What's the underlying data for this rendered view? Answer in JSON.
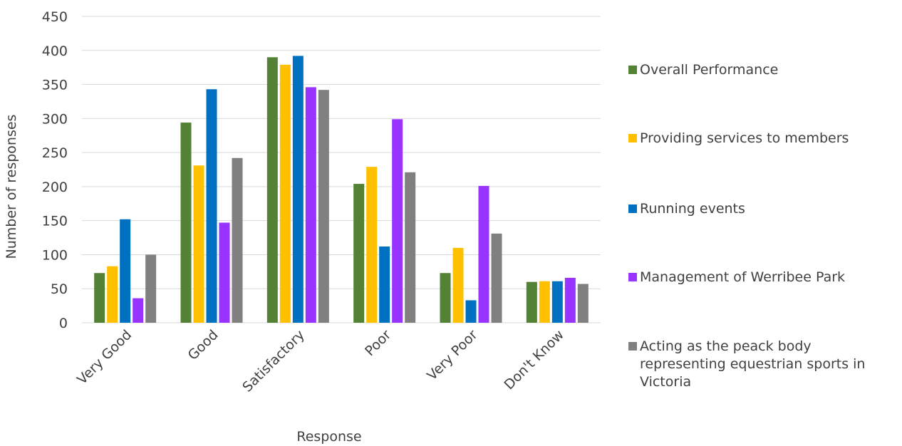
{
  "chart_data": {
    "type": "bar",
    "xlabel": "Response",
    "ylabel": "Number of responses",
    "ylim": [
      0,
      450
    ],
    "yticks": [
      0,
      50,
      100,
      150,
      200,
      250,
      300,
      350,
      400,
      450
    ],
    "grid": true,
    "legend_position": "right",
    "categories": [
      "Very Good",
      "Good",
      "Satisfactory",
      "Poor",
      "Very Poor",
      "Don't Know"
    ],
    "series": [
      {
        "name": "Overall Performance",
        "color": "#548235",
        "values": [
          73,
          294,
          390,
          204,
          73,
          60
        ]
      },
      {
        "name": "Providing services to members",
        "color": "#ffc000",
        "values": [
          83,
          231,
          379,
          229,
          110,
          61
        ]
      },
      {
        "name": "Running events",
        "color": "#0070c0",
        "values": [
          152,
          343,
          392,
          112,
          33,
          61
        ]
      },
      {
        "name": "Management of Werribee Park",
        "color": "#9933ff",
        "values": [
          36,
          147,
          346,
          299,
          201,
          66
        ]
      },
      {
        "name": "Acting as the peack body representing equestrian sports in Victoria",
        "color": "#808080",
        "values": [
          100,
          242,
          342,
          221,
          131,
          57
        ]
      }
    ]
  }
}
